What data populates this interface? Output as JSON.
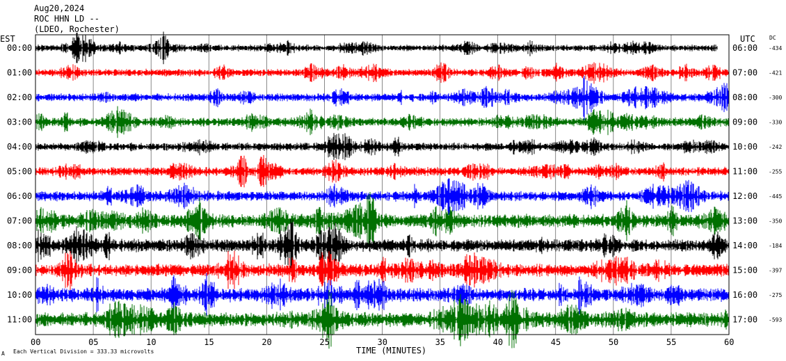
{
  "header": {
    "date": "Aug20,2024",
    "station": "ROC HHN LD --",
    "network": "(LDEO, Rochester)"
  },
  "left_tz": "EST",
  "right_tz": "UTC",
  "dc_header": "DC",
  "xlabel": "TIME (MINUTES)",
  "footer_note": "Each Vertical Division =  333.33 microvolts",
  "corner_mark": "A",
  "chart_data": {
    "type": "line",
    "title": "",
    "xlabel": "TIME (MINUTES)",
    "ylabel": "",
    "xlim": [
      0,
      60
    ],
    "x_ticks": [
      "00",
      "05",
      "10",
      "15",
      "20",
      "25",
      "30",
      "35",
      "40",
      "45",
      "50",
      "55",
      "60"
    ],
    "grid": true,
    "series": [
      {
        "left_label": "00:00",
        "right_label": "06:00",
        "dc": "-434",
        "color": "#000000",
        "amplitude": 1.0,
        "end_minute": 59
      },
      {
        "left_label": "01:00",
        "right_label": "07:00",
        "dc": "-421",
        "color": "#ff0000",
        "amplitude": 1.1,
        "end_minute": 60
      },
      {
        "left_label": "02:00",
        "right_label": "08:00",
        "dc": "-300",
        "color": "#0000ff",
        "amplitude": 1.2,
        "end_minute": 60
      },
      {
        "left_label": "03:00",
        "right_label": "09:00",
        "dc": "-330",
        "color": "#007000",
        "amplitude": 1.3,
        "end_minute": 60
      },
      {
        "left_label": "04:00",
        "right_label": "10:00",
        "dc": "-242",
        "color": "#000000",
        "amplitude": 1.2,
        "end_minute": 60
      },
      {
        "left_label": "05:00",
        "right_label": "11:00",
        "dc": "-255",
        "color": "#ff0000",
        "amplitude": 1.3,
        "end_minute": 60
      },
      {
        "left_label": "06:00",
        "right_label": "12:00",
        "dc": "-445",
        "color": "#0000ff",
        "amplitude": 1.5,
        "end_minute": 60
      },
      {
        "left_label": "07:00",
        "right_label": "13:00",
        "dc": "-350",
        "color": "#007000",
        "amplitude": 2.0,
        "end_minute": 60
      },
      {
        "left_label": "08:00",
        "right_label": "14:00",
        "dc": "-184",
        "color": "#000000",
        "amplitude": 1.9,
        "end_minute": 60
      },
      {
        "left_label": "09:00",
        "right_label": "15:00",
        "dc": "-397",
        "color": "#ff0000",
        "amplitude": 1.9,
        "end_minute": 60
      },
      {
        "left_label": "10:00",
        "right_label": "16:00",
        "dc": "-275",
        "color": "#0000ff",
        "amplitude": 2.0,
        "end_minute": 60
      },
      {
        "left_label": "11:00",
        "right_label": "17:00",
        "dc": "-593",
        "color": "#007000",
        "amplitude": 2.2,
        "end_minute": 60
      }
    ]
  }
}
